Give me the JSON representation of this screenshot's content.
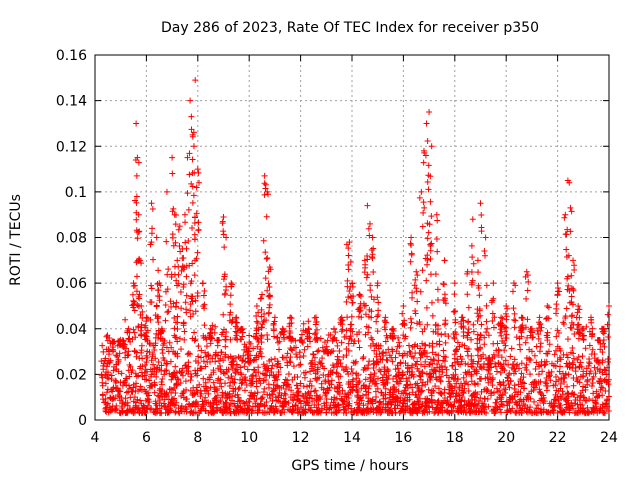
{
  "chart_data": {
    "type": "scatter",
    "title": "Day 286 of 2023, Rate Of TEC Index for receiver p350",
    "xlabel": "GPS time / hours",
    "ylabel": "ROTI / TECUs",
    "xlim": [
      4,
      24
    ],
    "ylim": [
      0,
      0.16
    ],
    "x_ticks": [
      "4",
      "6",
      "8",
      "10",
      "12",
      "14",
      "16",
      "18",
      "20",
      "22",
      "24"
    ],
    "y_ticks": [
      "0",
      "0.02",
      "0.04",
      "0.06",
      "0.08",
      "0.1",
      "0.12",
      "0.14",
      "0.16"
    ],
    "grid": true,
    "marker": "+",
    "color": "#ff0000",
    "series": [
      {
        "x": [
          4.3,
          4.5,
          4.7,
          4.9,
          5.1,
          5.3,
          5.5,
          5.6,
          5.65,
          5.7,
          5.75,
          5.8,
          6.0,
          6.2,
          6.4,
          6.5,
          6.6,
          6.8,
          7.0,
          7.1,
          7.2,
          7.3,
          7.4,
          7.5,
          7.6,
          7.7,
          7.75,
          7.8,
          7.85,
          7.9,
          8.0,
          8.2,
          8.5,
          8.8,
          9.0,
          9.1,
          9.3,
          9.5,
          9.7,
          10.0,
          10.3,
          10.5,
          10.6,
          10.7,
          10.8,
          11.0,
          11.3,
          11.6,
          12.0,
          12.3,
          12.6,
          13.0,
          13.3,
          13.6,
          13.8,
          13.9,
          14.0,
          14.3,
          14.5,
          14.6,
          14.7,
          14.8,
          15.0,
          15.3,
          15.6,
          16.0,
          16.3,
          16.5,
          16.7,
          16.8,
          16.9,
          17.0,
          17.1,
          17.3,
          17.6,
          18.0,
          18.3,
          18.5,
          18.7,
          18.9,
          19.0,
          19.2,
          19.5,
          19.8,
          20.0,
          20.3,
          20.6,
          20.8,
          21.0,
          21.3,
          21.6,
          22.0,
          22.3,
          22.4,
          22.5,
          22.6,
          22.8,
          23.0,
          23.3,
          23.6,
          23.8,
          24.0
        ],
        "y": [
          0.015,
          0.02,
          0.03,
          0.025,
          0.032,
          0.04,
          0.06,
          0.13,
          0.115,
          0.09,
          0.07,
          0.05,
          0.045,
          0.095,
          0.08,
          0.06,
          0.04,
          0.1,
          0.115,
          0.09,
          0.07,
          0.085,
          0.075,
          0.09,
          0.115,
          0.14,
          0.133,
          0.125,
          0.12,
          0.149,
          0.11,
          0.06,
          0.04,
          0.035,
          0.089,
          0.08,
          0.06,
          0.045,
          0.04,
          0.025,
          0.05,
          0.055,
          0.107,
          0.1,
          0.067,
          0.045,
          0.04,
          0.045,
          0.035,
          0.04,
          0.045,
          0.03,
          0.04,
          0.045,
          0.077,
          0.078,
          0.06,
          0.055,
          0.07,
          0.094,
          0.086,
          0.08,
          0.06,
          0.045,
          0.04,
          0.05,
          0.08,
          0.065,
          0.1,
          0.118,
          0.13,
          0.135,
          0.12,
          0.09,
          0.07,
          0.06,
          0.045,
          0.065,
          0.088,
          0.07,
          0.095,
          0.08,
          0.06,
          0.045,
          0.05,
          0.06,
          0.045,
          0.065,
          0.04,
          0.045,
          0.05,
          0.06,
          0.09,
          0.105,
          0.093,
          0.07,
          0.05,
          0.04,
          0.045,
          0.035,
          0.04,
          0.05
        ]
      }
    ],
    "baseline_band": {
      "y_min": 0.003,
      "y_mean": 0.015,
      "y_max": 0.035
    }
  }
}
